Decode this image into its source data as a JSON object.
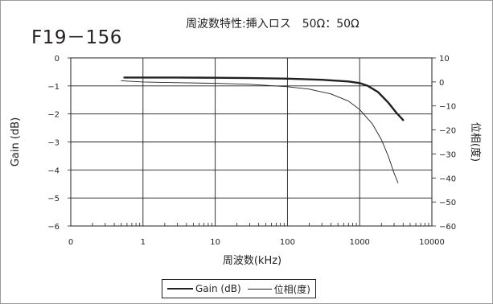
{
  "code_label": "F19－156",
  "chart_data": {
    "type": "line",
    "title": "周波数特性:挿入ロス　50Ω：50Ω",
    "xlabel": "周波数(kHz)",
    "ylabel": "Gain (dB)",
    "y2label": "位相(度)",
    "xscale": "log",
    "xlim": [
      0.1,
      10000
    ],
    "ylim": [
      -6,
      0
    ],
    "y2lim": [
      -60,
      10
    ],
    "x_tick_labels": [
      "0",
      "1",
      "10",
      "100",
      "1000",
      "10000"
    ],
    "x_tick_values": [
      0.1,
      1,
      10,
      100,
      1000,
      10000
    ],
    "y_tick_values": [
      0,
      -1,
      -2,
      -3,
      -4,
      -5,
      -6
    ],
    "y2_tick_values": [
      10,
      0,
      -10,
      -20,
      -30,
      -40,
      -50,
      -60
    ],
    "grid": true,
    "legend_position": "bottom",
    "series": [
      {
        "name": "Gain (dB)",
        "axis": "left",
        "style": "thick",
        "x": [
          0.55,
          1,
          3,
          10,
          30,
          100,
          300,
          700,
          1000,
          1300,
          1800,
          2500,
          3200,
          4000
        ],
        "y": [
          -0.7,
          -0.7,
          -0.7,
          -0.71,
          -0.72,
          -0.74,
          -0.78,
          -0.84,
          -0.9,
          -1.0,
          -1.22,
          -1.6,
          -1.95,
          -2.22
        ]
      },
      {
        "name": "位相(度)",
        "axis": "right",
        "style": "thin",
        "x": [
          0.5,
          1,
          3,
          10,
          30,
          100,
          200,
          400,
          700,
          1000,
          1500,
          2000,
          2500,
          3000,
          3400
        ],
        "y": [
          0.5,
          0,
          -0.3,
          -0.6,
          -1.0,
          -2.0,
          -3.0,
          -5.0,
          -8.0,
          -11.5,
          -17.5,
          -24.0,
          -31.0,
          -38.0,
          -42.0
        ]
      }
    ]
  }
}
